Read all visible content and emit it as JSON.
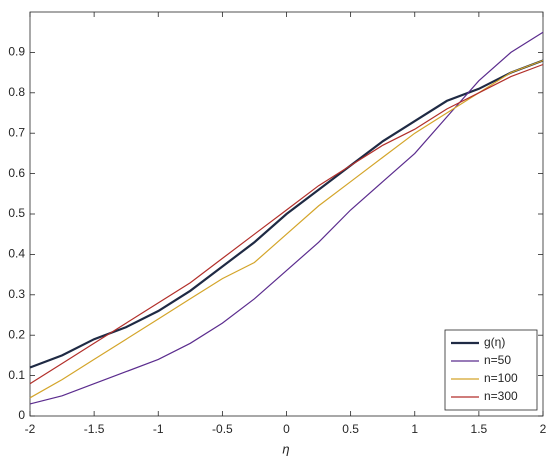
{
  "chart_data": {
    "type": "line",
    "x_label": "η",
    "x": [
      -2,
      -1.75,
      -1.5,
      -1.25,
      -1,
      -0.75,
      -0.5,
      -0.25,
      0,
      0.25,
      0.5,
      0.75,
      1,
      1.25,
      1.5,
      1.75,
      2
    ],
    "series": [
      {
        "name": "g(η)",
        "color": "#1f2a44",
        "values": [
          0.12,
          0.15,
          0.19,
          0.22,
          0.26,
          0.31,
          0.37,
          0.43,
          0.5,
          0.56,
          0.62,
          0.68,
          0.73,
          0.78,
          0.81,
          0.85,
          0.88
        ]
      },
      {
        "name": "n=50",
        "color": "#5b2c8e",
        "values": [
          0.03,
          0.05,
          0.08,
          0.11,
          0.14,
          0.18,
          0.23,
          0.29,
          0.36,
          0.43,
          0.51,
          0.58,
          0.65,
          0.74,
          0.83,
          0.9,
          0.95
        ]
      },
      {
        "name": "n=100",
        "color": "#d4a52a",
        "values": [
          0.045,
          0.09,
          0.14,
          0.19,
          0.24,
          0.29,
          0.34,
          0.38,
          0.45,
          0.52,
          0.58,
          0.64,
          0.7,
          0.75,
          0.8,
          0.85,
          0.88
        ]
      },
      {
        "name": "n=300",
        "color": "#b22f2a",
        "values": [
          0.08,
          0.13,
          0.18,
          0.23,
          0.28,
          0.33,
          0.39,
          0.45,
          0.51,
          0.57,
          0.62,
          0.67,
          0.71,
          0.76,
          0.8,
          0.84,
          0.87
        ]
      }
    ],
    "xlim": [
      -2,
      2
    ],
    "xticks": [
      -2,
      -1.5,
      -1,
      -0.5,
      0,
      0.5,
      1,
      1.5,
      2
    ],
    "ylim": [
      0,
      1
    ],
    "yticks": [
      0,
      0.1,
      0.2,
      0.3,
      0.4,
      0.5,
      0.6,
      0.7,
      0.8,
      0.9
    ],
    "legend": "lower right"
  }
}
